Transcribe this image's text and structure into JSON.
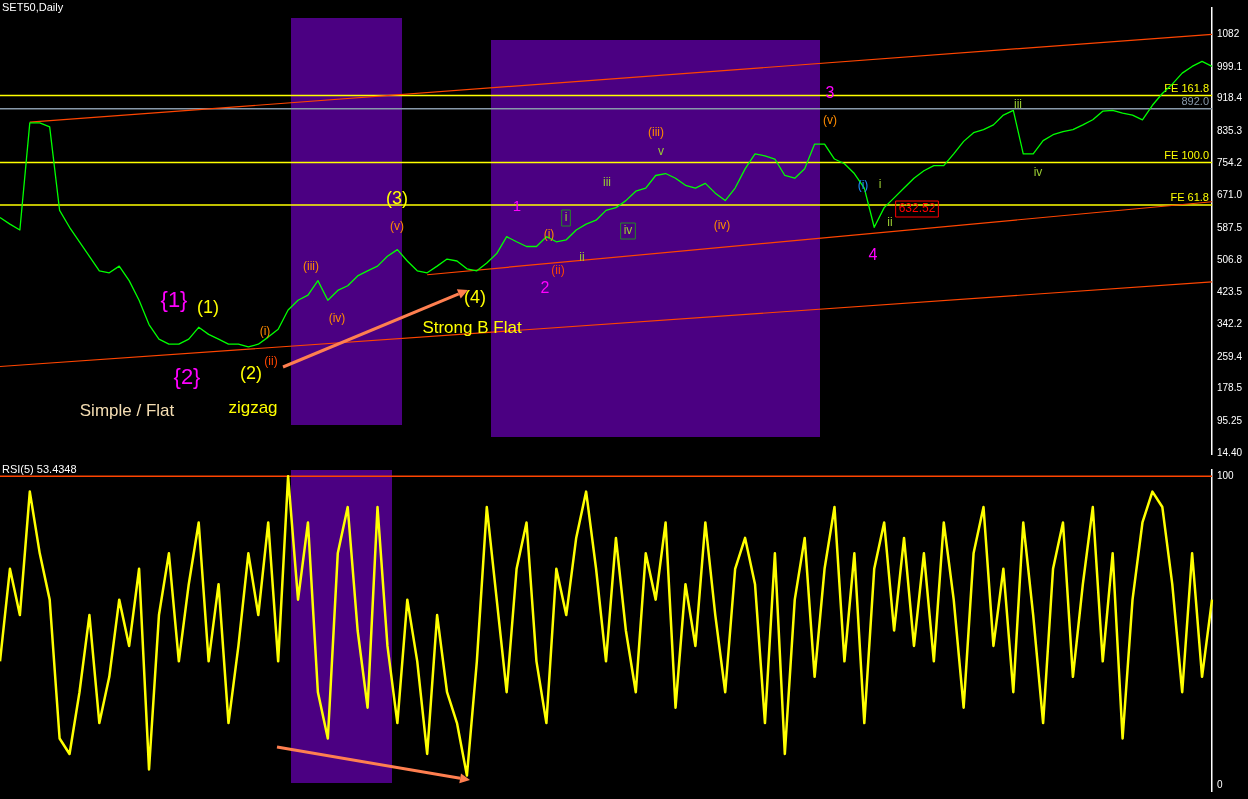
{
  "chart_data": [
    {
      "type": "line",
      "title": "SET50,Daily",
      "tick_labels": "y",
      "categories": [
        null,
        null,
        null,
        null,
        null,
        null,
        null,
        null,
        null,
        null,
        null,
        null,
        null,
        null,
        null,
        null,
        null,
        null,
        null,
        null,
        null,
        null,
        null,
        null,
        null,
        null,
        null,
        null,
        null,
        null,
        null,
        null,
        null,
        null,
        null,
        null,
        null,
        null,
        null,
        null,
        null,
        null,
        null,
        null,
        null,
        null,
        null,
        null,
        null,
        null,
        null,
        null,
        null,
        null,
        null,
        null,
        null,
        null,
        null,
        null,
        null,
        null,
        null,
        null,
        null,
        null,
        null,
        null,
        null,
        null,
        null,
        null,
        null,
        null,
        null,
        null,
        null,
        null,
        null,
        null,
        null,
        null,
        null,
        null,
        null,
        null,
        null,
        null,
        null,
        null,
        null,
        null,
        null,
        null,
        null,
        null,
        null,
        null,
        null,
        null,
        null,
        null,
        null,
        null,
        null,
        null,
        null,
        null,
        null,
        null,
        null,
        null,
        null,
        null,
        null,
        null,
        null,
        null,
        null,
        null,
        null,
        null,
        null
      ],
      "series": [
        {
          "color": "#00ff00",
          "values": [
            615,
            598,
            583,
            856,
            856,
            846,
            633,
            590,
            553,
            516,
            479,
            474,
            491,
            454,
            404,
            342,
            305,
            292,
            292,
            305,
            335,
            317,
            305,
            292,
            292,
            285,
            292,
            310,
            330,
            379,
            404,
            417,
            454,
            404,
            429,
            441,
            466,
            479,
            491,
            516,
            533,
            504,
            479,
            474,
            491,
            509,
            504,
            484,
            479,
            499,
            523,
            566,
            553,
            541,
            541,
            566,
            553,
            558,
            583,
            598,
            608,
            633,
            640,
            658,
            682,
            690,
            722,
            727,
            715,
            697,
            690,
            702,
            677,
            658,
            690,
            739,
            777,
            772,
            764,
            722,
            715,
            739,
            802,
            802,
            764,
            752,
            727,
            690,
            590,
            640,
            665,
            690,
            715,
            734,
            747,
            747,
            777,
            809,
            831,
            839,
            851,
            876,
            888,
            777,
            777,
            811,
            826,
            834,
            839,
            851,
            864,
            886,
            888,
            881,
            876,
            864,
            901,
            931,
            955,
            983,
            1000,
            1013,
            1000
          ]
        },
        {
          "type": "line",
          "color": "#ff4500",
          "values": [
            null,
            null,
            null,
            858,
            null,
            null,
            null,
            null,
            null,
            null,
            null,
            null,
            null,
            null,
            null,
            null,
            null,
            null,
            null,
            null,
            null,
            null,
            null,
            null,
            null,
            null,
            null,
            null,
            null,
            null,
            null,
            null,
            null,
            null,
            null,
            null,
            null,
            null,
            null,
            null,
            null,
            null,
            null,
            null,
            null,
            null,
            null,
            null,
            null,
            null,
            null,
            null,
            null,
            null,
            null,
            null,
            null,
            null,
            null,
            null,
            null,
            null,
            null,
            null,
            null,
            null,
            null,
            null,
            null,
            null,
            null,
            null,
            null,
            null,
            null,
            null,
            null,
            null,
            null,
            null,
            null,
            null,
            null,
            null,
            null,
            null,
            null,
            null,
            null,
            null,
            null,
            null,
            null,
            null,
            null,
            null,
            null,
            null,
            null,
            null,
            null,
            null,
            null,
            null,
            null,
            null,
            null,
            null,
            null,
            null,
            null,
            null,
            null,
            null,
            null,
            null,
            null,
            null,
            null,
            null,
            null,
            null,
            1082
          ]
        },
        {
          "type": "line",
          "color": "#ff4500",
          "values": [
            null,
            null,
            null,
            null,
            null,
            null,
            null,
            null,
            null,
            null,
            null,
            null,
            null,
            null,
            null,
            null,
            null,
            null,
            null,
            null,
            null,
            null,
            null,
            null,
            null,
            null,
            null,
            null,
            null,
            null,
            null,
            null,
            null,
            null,
            null,
            null,
            null,
            null,
            null,
            null,
            null,
            null,
            null,
            469,
            null,
            null,
            null,
            null,
            null,
            null,
            null,
            null,
            null,
            null,
            null,
            null,
            null,
            null,
            null,
            null,
            null,
            null,
            null,
            null,
            null,
            null,
            null,
            null,
            null,
            null,
            null,
            null,
            null,
            null,
            null,
            null,
            null,
            null,
            null,
            null,
            null,
            null,
            null,
            null,
            null,
            null,
            null,
            null,
            null,
            null,
            null,
            null,
            null,
            null,
            null,
            null,
            null,
            null,
            null,
            null,
            null,
            null,
            null,
            null,
            null,
            null,
            null,
            null,
            null,
            null,
            null,
            null,
            null,
            null,
            null,
            null,
            null,
            null,
            null,
            null,
            null,
            null,
            655
          ]
        },
        {
          "type": "line",
          "color": "#ff4500",
          "values": [
            235,
            null,
            null,
            null,
            null,
            null,
            null,
            null,
            null,
            null,
            null,
            null,
            null,
            null,
            null,
            null,
            null,
            null,
            null,
            null,
            null,
            null,
            null,
            null,
            null,
            null,
            null,
            null,
            null,
            null,
            null,
            null,
            null,
            null,
            null,
            null,
            null,
            null,
            null,
            null,
            null,
            null,
            null,
            null,
            null,
            null,
            null,
            null,
            null,
            null,
            null,
            null,
            null,
            null,
            null,
            null,
            null,
            null,
            null,
            null,
            null,
            null,
            null,
            null,
            null,
            null,
            null,
            null,
            null,
            null,
            null,
            null,
            null,
            null,
            null,
            null,
            null,
            null,
            null,
            null,
            null,
            null,
            null,
            null,
            null,
            null,
            null,
            null,
            null,
            null,
            null,
            null,
            null,
            null,
            null,
            null,
            null,
            null,
            null,
            null,
            null,
            null,
            null,
            null,
            null,
            null,
            null,
            null,
            null,
            null,
            null,
            null,
            null,
            null,
            null,
            null,
            null,
            null,
            null,
            null,
            null,
            null,
            451
          ]
        }
      ],
      "ylim": [
        12,
        1149
      ],
      "yticks": [
        {
          "value": 14.4,
          "label": "14.40"
        },
        95.25,
        178.5,
        259.4,
        342.2,
        423.5,
        506.8,
        587.5,
        {
          "value": 671,
          "label": "671.0"
        },
        754.2,
        835.3,
        918.4,
        999.1,
        1082
      ],
      "ref_lines": [
        {
          "axis": "y",
          "value": 926,
          "label": "FE 161.8",
          "color": "#ffff00"
        },
        {
          "axis": "y",
          "value": 892,
          "label": "892.0",
          "color": "#8899aa"
        },
        {
          "axis": "y",
          "value": 755,
          "label": "FE 100.0",
          "color": "#ffff00"
        },
        {
          "axis": "y",
          "value": 647,
          "label": "FE 61.8",
          "color": "#ffff00"
        }
      ],
      "annotations": [
        "{1}",
        "(1)",
        "{2}",
        "(2)",
        "(ii)",
        "(i)",
        "(iii)",
        "(iv)",
        "(v)",
        "(3)",
        "(4)",
        "Strong B Flat",
        "Simple / Flat",
        "zigzag",
        "1",
        "(i)",
        "(ii)",
        "2",
        "ii",
        "i",
        "iii",
        "iv",
        "(iii)",
        "v",
        "(iv)",
        "3",
        "(v)",
        "(i)",
        "i",
        "ii",
        "4",
        "632.52",
        "iii",
        "iv"
      ]
    },
    {
      "type": "line",
      "title": "RSI(5) 53.4348",
      "tick_labels": "y",
      "categories": [
        null,
        null,
        null,
        null,
        null,
        null,
        null,
        null,
        null,
        null,
        null,
        null,
        null,
        null,
        null,
        null,
        null,
        null,
        null,
        null,
        null,
        null,
        null,
        null,
        null,
        null,
        null,
        null,
        null,
        null,
        null,
        null,
        null,
        null,
        null,
        null,
        null,
        null,
        null,
        null,
        null,
        null,
        null,
        null,
        null,
        null,
        null,
        null,
        null,
        null,
        null,
        null,
        null,
        null,
        null,
        null,
        null,
        null,
        null,
        null,
        null,
        null,
        null,
        null,
        null,
        null,
        null,
        null,
        null,
        null,
        null,
        null,
        null,
        null,
        null,
        null,
        null,
        null,
        null,
        null,
        null,
        null,
        null,
        null,
        null,
        null,
        null,
        null,
        null,
        null,
        null,
        null,
        null,
        null,
        null,
        null,
        null,
        null,
        null,
        null,
        null,
        null,
        null,
        null,
        null,
        null,
        null,
        null,
        null,
        null,
        null,
        null,
        null,
        null,
        null,
        null,
        null,
        null,
        null,
        null,
        null,
        null,
        null
      ],
      "series": [
        {
          "color": "#ffff00",
          "values": [
            40,
            70,
            55,
            95,
            75,
            60,
            15,
            10,
            30,
            55,
            20,
            35,
            60,
            45,
            70,
            5,
            55,
            75,
            40,
            65,
            85,
            40,
            65,
            20,
            45,
            75,
            55,
            85,
            40,
            100,
            60,
            85,
            30,
            15,
            75,
            90,
            50,
            25,
            90,
            45,
            20,
            60,
            40,
            10,
            55,
            30,
            20,
            3,
            40,
            90,
            60,
            30,
            70,
            85,
            40,
            20,
            70,
            55,
            80,
            95,
            70,
            40,
            80,
            50,
            30,
            75,
            60,
            85,
            25,
            65,
            45,
            85,
            55,
            30,
            70,
            80,
            65,
            20,
            75,
            10,
            60,
            80,
            35,
            70,
            90,
            40,
            75,
            20,
            70,
            85,
            50,
            80,
            45,
            75,
            40,
            85,
            60,
            25,
            75,
            90,
            45,
            70,
            30,
            85,
            55,
            20,
            70,
            85,
            35,
            65,
            90,
            40,
            75,
            15,
            60,
            85,
            95,
            90,
            65,
            30,
            75,
            35,
            60
          ]
        }
      ],
      "ylim": [
        -2,
        102
      ],
      "yticks": [
        0,
        100
      ],
      "ref_lines": [
        {
          "axis": "y",
          "value": 100,
          "color": "#ff4500"
        }
      ]
    }
  ]
}
